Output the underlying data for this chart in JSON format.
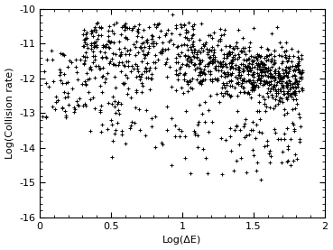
{
  "xlim": [
    0.0,
    2.0
  ],
  "ylim": [
    -16,
    -10
  ],
  "xticks": [
    0.0,
    0.5,
    1.0,
    1.5,
    2.0
  ],
  "yticks": [
    -16,
    -15,
    -14,
    -13,
    -12,
    -11,
    -10
  ],
  "xlabel": "Log(ΔE)",
  "ylabel": "Log(Collision rate)",
  "marker": "+",
  "markersize": 3.0,
  "markeredgewidth": 0.7,
  "color": "black",
  "background_color": "#ffffff",
  "seed": 7
}
